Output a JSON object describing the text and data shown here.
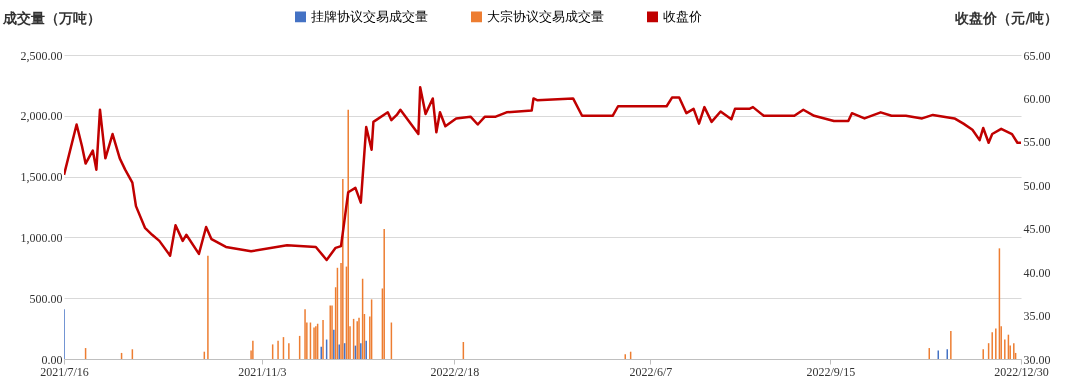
{
  "chart_data": {
    "type": "bar",
    "ylabel": "成交量（万吨）",
    "y2label": "收盘价（元/吨）",
    "xlim": [
      "2021-07-16",
      "2022-12-30"
    ],
    "xticks": [
      {
        "value": "2021-07-16",
        "label": "2021/7/16"
      },
      {
        "value": "2021-11-03",
        "label": "2021/11/3"
      },
      {
        "value": "2022-02-18",
        "label": "2022/2/18"
      },
      {
        "value": "2022-06-07",
        "label": "2022/6/7"
      },
      {
        "value": "2022-09-15",
        "label": "2022/9/15"
      },
      {
        "value": "2022-12-30",
        "label": "2022/12/30"
      }
    ],
    "ylim": [
      0,
      2500
    ],
    "yticks": [
      {
        "value": 0,
        "label": "0.00"
      },
      {
        "value": 500,
        "label": "500.00"
      },
      {
        "value": 1000,
        "label": "1,000.00"
      },
      {
        "value": 1500,
        "label": "1,500.00"
      },
      {
        "value": 2000,
        "label": "2,000.00"
      },
      {
        "value": 2500,
        "label": "2,500.00"
      }
    ],
    "y2lim": [
      30,
      65
    ],
    "y2ticks": [
      {
        "value": 30,
        "label": "30.00"
      },
      {
        "value": 35,
        "label": "35.00"
      },
      {
        "value": 40,
        "label": "40.00"
      },
      {
        "value": 45,
        "label": "45.00"
      },
      {
        "value": 50,
        "label": "50.00"
      },
      {
        "value": 55,
        "label": "55.00"
      },
      {
        "value": 60,
        "label": "60.00"
      },
      {
        "value": 65,
        "label": "65.00"
      }
    ],
    "grid": "y",
    "legend": "top",
    "series": [
      {
        "name": "挂牌协议交易成交量",
        "color": "#4472c4",
        "axis": "y",
        "x": [
          "2021-07-16",
          "2021-12-06",
          "2021-12-09",
          "2021-12-13",
          "2021-12-16",
          "2021-12-19",
          "2021-12-25",
          "2021-12-28",
          "2021-12-31",
          "2022-11-14",
          "2022-11-19"
        ],
        "values": [
          410,
          100,
          160,
          240,
          120,
          130,
          110,
          130,
          150,
          70,
          80
        ]
      },
      {
        "name": "大宗协议交易成交量",
        "color": "#ed7d31",
        "axis": "y",
        "x": [
          "2021-07-28",
          "2021-08-17",
          "2021-08-23",
          "2021-10-02",
          "2021-10-04",
          "2021-10-28",
          "2021-10-29",
          "2021-11-09",
          "2021-11-12",
          "2021-11-15",
          "2021-11-18",
          "2021-11-24",
          "2021-11-27",
          "2021-11-28",
          "2021-11-30",
          "2021-12-02",
          "2021-12-03",
          "2021-12-04",
          "2021-12-07",
          "2021-12-11",
          "2021-12-12",
          "2021-12-14",
          "2021-12-15",
          "2021-12-17",
          "2021-12-18",
          "2021-12-20",
          "2021-12-21",
          "2021-12-22",
          "2021-12-24",
          "2021-12-26",
          "2021-12-27",
          "2021-12-29",
          "2021-12-30",
          "2022-01-02",
          "2022-01-03",
          "2022-01-09",
          "2022-01-10",
          "2022-01-14",
          "2022-02-23",
          "2022-05-24",
          "2022-05-27",
          "2022-11-09",
          "2022-11-21",
          "2022-12-09",
          "2022-12-12",
          "2022-12-14",
          "2022-12-16",
          "2022-12-18",
          "2022-12-19",
          "2022-12-21",
          "2022-12-23",
          "2022-12-24",
          "2022-12-26",
          "2022-12-27"
        ],
        "values": [
          90,
          50,
          80,
          60,
          850,
          70,
          150,
          120,
          150,
          180,
          130,
          190,
          410,
          300,
          300,
          260,
          270,
          290,
          320,
          440,
          440,
          590,
          750,
          790,
          1480,
          760,
          2050,
          270,
          330,
          310,
          340,
          660,
          370,
          350,
          490,
          580,
          1070,
          300,
          140,
          40,
          60,
          90,
          230,
          80,
          130,
          220,
          250,
          910,
          270,
          160,
          200,
          110,
          130,
          50
        ]
      },
      {
        "name": "收盘价",
        "color": "#c00000",
        "type": "line",
        "axis": "y2",
        "x": [
          "2021-07-16",
          "2021-07-23",
          "2021-07-26",
          "2021-07-28",
          "2021-08-01",
          "2021-08-03",
          "2021-08-05",
          "2021-08-08",
          "2021-08-12",
          "2021-08-16",
          "2021-08-19",
          "2021-08-23",
          "2021-08-25",
          "2021-08-30",
          "2021-09-03",
          "2021-09-07",
          "2021-09-13",
          "2021-09-16",
          "2021-09-20",
          "2021-09-22",
          "2021-09-29",
          "2021-10-03",
          "2021-10-06",
          "2021-10-14",
          "2021-10-28",
          "2021-11-17",
          "2021-12-03",
          "2021-12-09",
          "2021-12-14",
          "2021-12-17",
          "2021-12-21",
          "2021-12-25",
          "2021-12-28",
          "2021-12-31",
          "2022-01-03",
          "2022-01-04",
          "2022-01-12",
          "2022-01-14",
          "2022-01-17",
          "2022-01-19",
          "2022-01-29",
          "2022-01-30",
          "2022-02-02",
          "2022-02-06",
          "2022-02-08",
          "2022-02-10",
          "2022-02-13",
          "2022-02-19",
          "2022-02-27",
          "2022-03-03",
          "2022-03-07",
          "2022-03-13",
          "2022-03-19",
          "2022-04-02",
          "2022-04-03",
          "2022-04-05",
          "2022-04-25",
          "2022-04-30",
          "2022-05-17",
          "2022-05-20",
          "2022-06-16",
          "2022-06-19",
          "2022-06-23",
          "2022-06-27",
          "2022-07-01",
          "2022-07-04",
          "2022-07-07",
          "2022-07-11",
          "2022-07-16",
          "2022-07-22",
          "2022-07-24",
          "2022-08-01",
          "2022-08-03",
          "2022-08-09",
          "2022-08-26",
          "2022-08-31",
          "2022-09-06",
          "2022-09-17",
          "2022-09-25",
          "2022-09-27",
          "2022-10-04",
          "2022-10-13",
          "2022-10-19",
          "2022-10-27",
          "2022-11-05",
          "2022-11-11",
          "2022-11-23",
          "2022-11-28",
          "2022-12-03",
          "2022-12-07",
          "2022-12-09",
          "2022-12-12",
          "2022-12-14",
          "2022-12-19",
          "2022-12-25",
          "2022-12-28",
          "2022-12-30"
        ],
        "values": [
          51.2,
          57.0,
          54.5,
          52.5,
          54.0,
          51.8,
          58.7,
          53.1,
          55.9,
          53.1,
          51.8,
          50.3,
          47.6,
          45.1,
          44.3,
          43.6,
          41.9,
          45.4,
          43.6,
          44.3,
          42.1,
          45.2,
          43.8,
          42.9,
          42.4,
          43.1,
          42.9,
          41.4,
          42.8,
          43.0,
          49.2,
          49.7,
          48.0,
          56.7,
          54.1,
          57.3,
          58.4,
          57.5,
          58.1,
          58.7,
          55.9,
          61.3,
          58.2,
          60.0,
          56.1,
          58.4,
          56.8,
          57.7,
          57.9,
          57.0,
          57.9,
          57.9,
          58.4,
          58.6,
          60.0,
          59.8,
          60.0,
          58.0,
          58.0,
          59.1,
          59.1,
          60.1,
          60.1,
          58.3,
          58.8,
          57.1,
          59.0,
          57.3,
          58.5,
          57.6,
          58.8,
          58.8,
          59.0,
          58.0,
          58.0,
          58.7,
          58.0,
          57.4,
          57.4,
          58.3,
          57.7,
          58.4,
          58.0,
          58.0,
          57.7,
          58.1,
          57.7,
          57.1,
          56.4,
          55.2,
          56.6,
          54.9,
          55.9,
          56.5,
          55.9,
          54.9,
          54.9
        ]
      }
    ]
  }
}
